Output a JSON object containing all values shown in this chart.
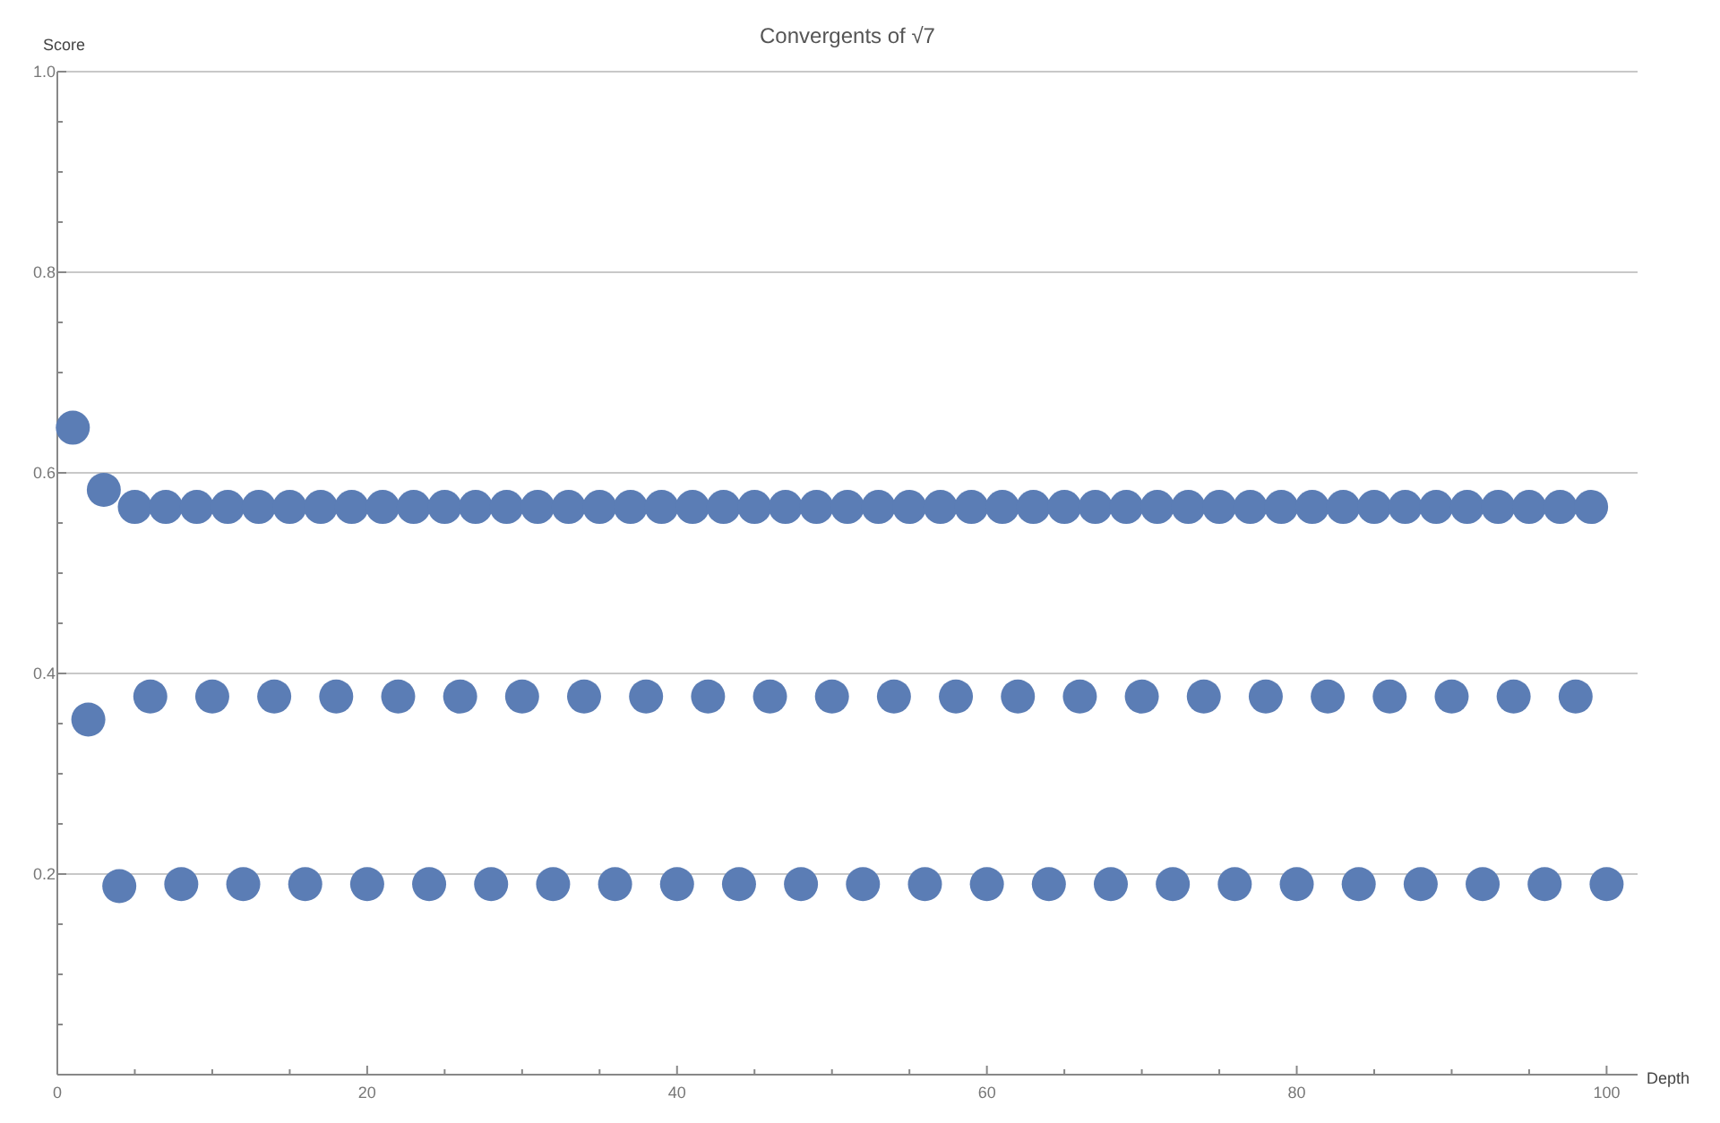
{
  "chart_data": {
    "type": "scatter",
    "title": "Convergents of √7",
    "xlabel": "Depth",
    "ylabel": "Score",
    "marker": "circle",
    "grid": "y",
    "xlim": [
      0,
      102
    ],
    "ylim": [
      0,
      1
    ],
    "xticks": [
      0,
      {
        "value": 5,
        "label": null
      },
      {
        "value": 10,
        "label": null
      },
      {
        "value": 15,
        "label": null
      },
      20,
      {
        "value": 25,
        "label": null
      },
      {
        "value": 30,
        "label": null
      },
      {
        "value": 35,
        "label": null
      },
      40,
      {
        "value": 45,
        "label": null
      },
      {
        "value": 50,
        "label": null
      },
      {
        "value": 55,
        "label": null
      },
      60,
      {
        "value": 65,
        "label": null
      },
      {
        "value": 70,
        "label": null
      },
      {
        "value": 75,
        "label": null
      },
      80,
      {
        "value": 85,
        "label": null
      },
      {
        "value": 90,
        "label": null
      },
      {
        "value": 95,
        "label": null
      },
      100
    ],
    "yticks": [
      {
        "value": 0.05,
        "label": null
      },
      {
        "value": 0.1,
        "label": null
      },
      {
        "value": 0.15,
        "label": null
      },
      0.2,
      {
        "value": 0.25,
        "label": null
      },
      {
        "value": 0.3,
        "label": null
      },
      {
        "value": 0.35,
        "label": null
      },
      0.4,
      {
        "value": 0.45,
        "label": null
      },
      {
        "value": 0.5,
        "label": null
      },
      {
        "value": 0.55,
        "label": null
      },
      0.6,
      {
        "value": 0.65,
        "label": null
      },
      {
        "value": 0.7,
        "label": null
      },
      {
        "value": 0.75,
        "label": null
      },
      0.8,
      {
        "value": 0.85,
        "label": null
      },
      {
        "value": 0.9,
        "label": null
      },
      {
        "value": 0.95,
        "label": null
      },
      {
        "value": 1,
        "label": "1.0"
      }
    ],
    "x": [
      1,
      2,
      3,
      4,
      5,
      6,
      7,
      8,
      9,
      10,
      11,
      12,
      13,
      14,
      15,
      16,
      17,
      18,
      19,
      20,
      21,
      22,
      23,
      24,
      25,
      26,
      27,
      28,
      29,
      30,
      31,
      32,
      33,
      34,
      35,
      36,
      37,
      38,
      39,
      40,
      41,
      42,
      43,
      44,
      45,
      46,
      47,
      48,
      49,
      50,
      51,
      52,
      53,
      54,
      55,
      56,
      57,
      58,
      59,
      60,
      61,
      62,
      63,
      64,
      65,
      66,
      67,
      68,
      69,
      70,
      71,
      72,
      73,
      74,
      75,
      76,
      77,
      78,
      79,
      80,
      81,
      82,
      83,
      84,
      85,
      86,
      87,
      88,
      89,
      90,
      91,
      92,
      93,
      94,
      95,
      96,
      97,
      98,
      99,
      100
    ],
    "series": [
      {
        "color": "#5b7db5",
        "values": [
          0.645,
          0.354,
          0.583,
          0.188,
          0.566,
          0.377,
          0.566,
          0.19,
          0.566,
          0.377,
          0.566,
          0.19,
          0.566,
          0.377,
          0.566,
          0.19,
          0.566,
          0.377,
          0.566,
          0.19,
          0.566,
          0.377,
          0.566,
          0.19,
          0.566,
          0.377,
          0.566,
          0.19,
          0.566,
          0.377,
          0.566,
          0.19,
          0.566,
          0.377,
          0.566,
          0.19,
          0.566,
          0.377,
          0.566,
          0.19,
          0.566,
          0.377,
          0.566,
          0.19,
          0.566,
          0.377,
          0.566,
          0.19,
          0.566,
          0.377,
          0.566,
          0.19,
          0.566,
          0.377,
          0.566,
          0.19,
          0.566,
          0.377,
          0.566,
          0.19,
          0.566,
          0.377,
          0.566,
          0.19,
          0.566,
          0.377,
          0.566,
          0.19,
          0.566,
          0.377,
          0.566,
          0.19,
          0.566,
          0.377,
          0.566,
          0.19,
          0.566,
          0.377,
          0.566,
          0.19,
          0.566,
          0.377,
          0.566,
          0.19,
          0.566,
          0.377,
          0.566,
          0.19,
          0.566,
          0.377,
          0.566,
          0.19,
          0.566,
          0.377,
          0.566,
          0.19,
          0.566,
          0.377,
          0.566,
          0.19
        ]
      }
    ]
  }
}
